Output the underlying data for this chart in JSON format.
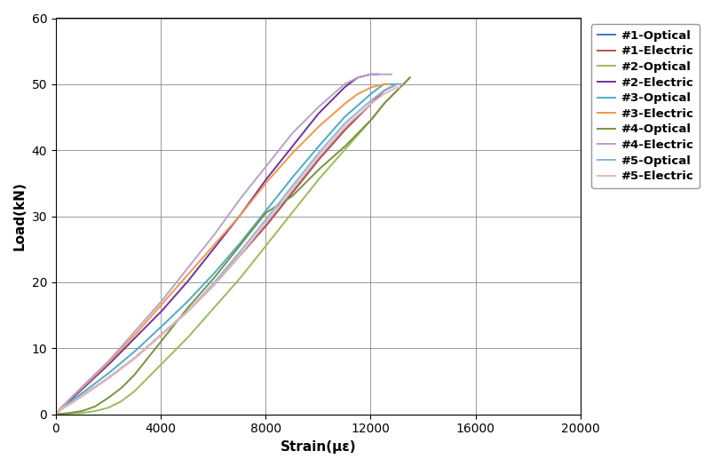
{
  "title": "",
  "xlabel": "Strain(με)",
  "ylabel": "Load(kN)",
  "xlim": [
    0,
    20000
  ],
  "ylim": [
    0,
    60
  ],
  "xticks": [
    0,
    4000,
    8000,
    12000,
    16000,
    20000
  ],
  "yticks": [
    0,
    10,
    20,
    30,
    40,
    50,
    60
  ],
  "series": [
    {
      "label": "#1-Optical",
      "color": "#4472C4",
      "lw": 1.4,
      "x": [
        0,
        200,
        500,
        1000,
        2000,
        3000,
        4000,
        5000,
        6000,
        7000,
        8000,
        9000,
        10000,
        11000,
        12000,
        12500,
        13000,
        13100
      ],
      "y": [
        0,
        0.8,
        1.5,
        2.8,
        5.5,
        8.5,
        12.0,
        15.5,
        19.5,
        24.0,
        28.5,
        33.5,
        38.5,
        43.0,
        47.0,
        49.0,
        50.0,
        50.0
      ]
    },
    {
      "label": "#1-Electric",
      "color": "#C0504D",
      "lw": 1.4,
      "x": [
        0,
        200,
        500,
        1000,
        2000,
        3000,
        4000,
        5000,
        6000,
        7000,
        8000,
        9000,
        10000,
        11000,
        12000,
        12500,
        13000,
        13100
      ],
      "y": [
        0,
        0.8,
        1.5,
        2.8,
        5.5,
        8.5,
        12.0,
        15.5,
        19.5,
        24.0,
        28.5,
        33.5,
        38.5,
        43.0,
        47.0,
        49.0,
        50.0,
        50.0
      ]
    },
    {
      "label": "#2-Optical",
      "color": "#9BBB59",
      "lw": 1.4,
      "x": [
        0,
        500,
        1000,
        1500,
        2000,
        2500,
        3000,
        3500,
        4000,
        5000,
        6000,
        7000,
        8000,
        9000,
        10000,
        11000,
        12000,
        12500,
        13000,
        13500
      ],
      "y": [
        0,
        0.1,
        0.2,
        0.5,
        1.0,
        2.0,
        3.5,
        5.5,
        7.5,
        11.5,
        16.0,
        20.5,
        25.5,
        30.5,
        35.5,
        40.0,
        44.5,
        47.0,
        49.0,
        51.0
      ]
    },
    {
      "label": "#2-Electric",
      "color": "#7030A0",
      "lw": 1.4,
      "x": [
        0,
        200,
        500,
        1000,
        2000,
        3000,
        4000,
        5000,
        6000,
        7000,
        8000,
        9000,
        10000,
        11000,
        11500,
        12000,
        12300
      ],
      "y": [
        0,
        1.0,
        2.0,
        3.8,
        7.5,
        11.5,
        15.5,
        20.0,
        25.0,
        30.0,
        35.5,
        40.5,
        45.5,
        49.5,
        51.0,
        51.5,
        51.5
      ]
    },
    {
      "label": "#3-Optical",
      "color": "#4BACC6",
      "lw": 1.4,
      "x": [
        0,
        200,
        500,
        1000,
        2000,
        3000,
        4000,
        5000,
        6000,
        7000,
        8000,
        9000,
        10000,
        11000,
        12000,
        12500,
        12800,
        13000
      ],
      "y": [
        0,
        0.9,
        1.8,
        3.2,
        6.2,
        9.5,
        13.2,
        17.0,
        21.2,
        25.8,
        30.8,
        35.8,
        40.5,
        45.0,
        48.5,
        50.0,
        50.0,
        50.0
      ]
    },
    {
      "label": "#3-Electric",
      "color": "#F79646",
      "lw": 1.4,
      "x": [
        0,
        200,
        500,
        1000,
        2000,
        3000,
        4000,
        5000,
        6000,
        7000,
        8000,
        9000,
        10000,
        11000,
        11500,
        12000,
        12500,
        12700
      ],
      "y": [
        0,
        1.0,
        2.2,
        4.0,
        7.8,
        12.0,
        16.5,
        21.0,
        25.5,
        30.0,
        35.0,
        39.5,
        43.5,
        47.0,
        48.5,
        49.5,
        50.0,
        50.0
      ]
    },
    {
      "label": "#4-Optical",
      "color": "#77933C",
      "lw": 1.4,
      "x": [
        0,
        500,
        1000,
        1500,
        2000,
        2500,
        3000,
        3500,
        4000,
        5000,
        6000,
        7000,
        8000,
        9000,
        10000,
        11000,
        12000,
        12500,
        13000,
        13500
      ],
      "y": [
        0,
        0.2,
        0.5,
        1.2,
        2.5,
        4.0,
        6.0,
        8.5,
        11.0,
        16.0,
        20.5,
        25.5,
        30.5,
        33.0,
        37.0,
        40.5,
        44.5,
        47.0,
        49.0,
        51.0
      ]
    },
    {
      "label": "#4-Electric",
      "color": "#B8A2C8",
      "lw": 1.4,
      "x": [
        0,
        200,
        500,
        1000,
        2000,
        3000,
        4000,
        5000,
        6000,
        7000,
        8000,
        9000,
        10000,
        11000,
        11500,
        12000,
        12500,
        12800
      ],
      "y": [
        0,
        1.0,
        2.2,
        4.2,
        8.0,
        12.5,
        17.0,
        22.0,
        27.0,
        32.5,
        37.5,
        42.5,
        46.5,
        50.0,
        51.0,
        51.5,
        51.5,
        51.5
      ]
    },
    {
      "label": "#5-Optical",
      "color": "#8DB4E2",
      "lw": 1.4,
      "x": [
        0,
        200,
        500,
        1000,
        2000,
        3000,
        4000,
        5000,
        6000,
        7000,
        8000,
        9000,
        10000,
        11000,
        12000,
        12500,
        13000,
        13200
      ],
      "y": [
        0,
        0.8,
        1.5,
        2.8,
        5.5,
        8.5,
        12.0,
        15.5,
        19.8,
        24.5,
        29.5,
        34.5,
        39.5,
        44.0,
        47.5,
        49.0,
        50.0,
        50.0
      ]
    },
    {
      "label": "#5-Electric",
      "color": "#E6B9B8",
      "lw": 1.4,
      "x": [
        0,
        200,
        500,
        1000,
        2000,
        3000,
        4000,
        5000,
        6000,
        7000,
        8000,
        9000,
        10000,
        11000,
        12000,
        12500,
        13000,
        13100
      ],
      "y": [
        0,
        0.8,
        1.5,
        2.8,
        5.5,
        8.5,
        12.0,
        15.5,
        19.5,
        24.0,
        29.0,
        34.0,
        39.0,
        43.5,
        47.0,
        48.5,
        49.5,
        49.5
      ]
    }
  ],
  "legend_fontsize": 9.5,
  "tick_fontsize": 10,
  "label_fontsize": 11,
  "background_color": "#ffffff",
  "grid_color": "#888888",
  "grid_lw": 0.6
}
